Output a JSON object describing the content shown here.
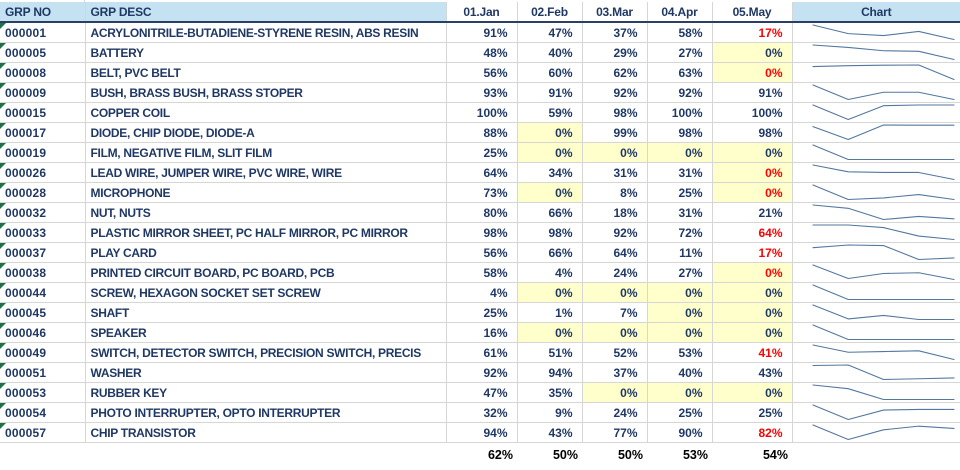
{
  "header": {
    "grp_no": "GRP NO",
    "grp_desc": "GRP DESC",
    "months": [
      "01.Jan",
      "02.Feb",
      "03.Mar",
      "04.Apr",
      "05.May"
    ],
    "chart": "Chart"
  },
  "rows": [
    {
      "no": "000001",
      "desc": "ACRYLONITRILE-BUTADIENE-STYRENE RESIN, ABS RESIN",
      "values": [
        "91%",
        "47%",
        "37%",
        "58%",
        "17%"
      ],
      "styles": [
        "n",
        "n",
        "n",
        "n",
        "r"
      ]
    },
    {
      "no": "000005",
      "desc": "BATTERY",
      "values": [
        "48%",
        "40%",
        "29%",
        "27%",
        "0%"
      ],
      "styles": [
        "n",
        "n",
        "n",
        "n",
        "y"
      ]
    },
    {
      "no": "000008",
      "desc": "BELT, PVC BELT",
      "values": [
        "56%",
        "60%",
        "62%",
        "63%",
        "0%"
      ],
      "styles": [
        "n",
        "n",
        "n",
        "n",
        "yr"
      ]
    },
    {
      "no": "000009",
      "desc": "BUSH, BRASS BUSH, BRASS STOPER",
      "values": [
        "93%",
        "91%",
        "92%",
        "92%",
        "91%"
      ],
      "styles": [
        "n",
        "n",
        "n",
        "n",
        "n"
      ]
    },
    {
      "no": "000015",
      "desc": "COPPER COIL",
      "values": [
        "100%",
        "59%",
        "98%",
        "100%",
        "100%"
      ],
      "styles": [
        "n",
        "n",
        "n",
        "n",
        "n"
      ]
    },
    {
      "no": "000017",
      "desc": "DIODE, CHIP DIODE, DIODE-A",
      "values": [
        "88%",
        "0%",
        "99%",
        "98%",
        "98%"
      ],
      "styles": [
        "n",
        "y",
        "n",
        "n",
        "n"
      ]
    },
    {
      "no": "000019",
      "desc": "FILM, NEGATIVE FILM, SLIT FILM",
      "values": [
        "25%",
        "0%",
        "0%",
        "0%",
        "0%"
      ],
      "styles": [
        "n",
        "y",
        "y",
        "y",
        "y"
      ]
    },
    {
      "no": "000026",
      "desc": "LEAD WIRE, JUMPER WIRE, PVC WIRE, WIRE",
      "values": [
        "64%",
        "34%",
        "31%",
        "31%",
        "0%"
      ],
      "styles": [
        "n",
        "n",
        "n",
        "n",
        "yr"
      ]
    },
    {
      "no": "000028",
      "desc": "MICROPHONE",
      "values": [
        "73%",
        "0%",
        "8%",
        "25%",
        "0%"
      ],
      "styles": [
        "n",
        "y",
        "n",
        "n",
        "yr"
      ]
    },
    {
      "no": "000032",
      "desc": "NUT, NUTS",
      "values": [
        "80%",
        "66%",
        "18%",
        "31%",
        "21%"
      ],
      "styles": [
        "n",
        "n",
        "n",
        "n",
        "n"
      ]
    },
    {
      "no": "000033",
      "desc": "PLASTIC MIRROR SHEET, PC HALF MIRROR, PC MIRROR",
      "values": [
        "98%",
        "98%",
        "92%",
        "72%",
        "64%"
      ],
      "styles": [
        "n",
        "n",
        "n",
        "n",
        "r"
      ]
    },
    {
      "no": "000037",
      "desc": "PLAY CARD",
      "values": [
        "56%",
        "66%",
        "64%",
        "11%",
        "17%"
      ],
      "styles": [
        "n",
        "n",
        "n",
        "n",
        "r"
      ]
    },
    {
      "no": "000038",
      "desc": "PRINTED CIRCUIT BOARD, PC BOARD, PCB",
      "values": [
        "58%",
        "4%",
        "24%",
        "27%",
        "0%"
      ],
      "styles": [
        "n",
        "n",
        "n",
        "n",
        "yr"
      ]
    },
    {
      "no": "000044",
      "desc": "SCREW, HEXAGON SOCKET SET SCREW",
      "values": [
        "4%",
        "0%",
        "0%",
        "0%",
        "0%"
      ],
      "styles": [
        "n",
        "y",
        "y",
        "y",
        "y"
      ]
    },
    {
      "no": "000045",
      "desc": "SHAFT",
      "values": [
        "25%",
        "1%",
        "7%",
        "0%",
        "0%"
      ],
      "styles": [
        "n",
        "n",
        "n",
        "y",
        "y"
      ]
    },
    {
      "no": "000046",
      "desc": "SPEAKER",
      "values": [
        "16%",
        "0%",
        "0%",
        "0%",
        "0%"
      ],
      "styles": [
        "n",
        "y",
        "y",
        "y",
        "y"
      ]
    },
    {
      "no": "000049",
      "desc": "SWITCH, DETECTOR SWITCH, PRECISION SWITCH, PRECIS",
      "values": [
        "61%",
        "51%",
        "52%",
        "53%",
        "41%"
      ],
      "styles": [
        "n",
        "n",
        "n",
        "n",
        "r"
      ]
    },
    {
      "no": "000051",
      "desc": "WASHER",
      "values": [
        "92%",
        "94%",
        "37%",
        "40%",
        "43%"
      ],
      "styles": [
        "n",
        "n",
        "n",
        "n",
        "n"
      ]
    },
    {
      "no": "000053",
      "desc": "RUBBER KEY",
      "values": [
        "47%",
        "35%",
        "0%",
        "0%",
        "0%"
      ],
      "styles": [
        "n",
        "n",
        "y",
        "y",
        "y"
      ]
    },
    {
      "no": "000054",
      "desc": "PHOTO INTERRUPTER, OPTO INTERRUPTER",
      "values": [
        "32%",
        "9%",
        "24%",
        "25%",
        "25%"
      ],
      "styles": [
        "n",
        "n",
        "n",
        "n",
        "n"
      ]
    },
    {
      "no": "000057",
      "desc": "CHIP TRANSISTOR",
      "values": [
        "94%",
        "43%",
        "77%",
        "90%",
        "82%"
      ],
      "styles": [
        "n",
        "n",
        "n",
        "n",
        "r"
      ]
    }
  ],
  "summary": [
    "62%",
    "50%",
    "50%",
    "53%",
    "54%"
  ],
  "colors": {
    "headerBg": "#C5E2F3",
    "navy": "#1F3864",
    "red": "#FF0000",
    "yellowBg": "#FFFFCC",
    "grid": "#D6D6D6",
    "headerBorder": "#2A3F66",
    "sparkline": "#53779F",
    "green": "#1E7145",
    "summaryText": "#000000"
  }
}
